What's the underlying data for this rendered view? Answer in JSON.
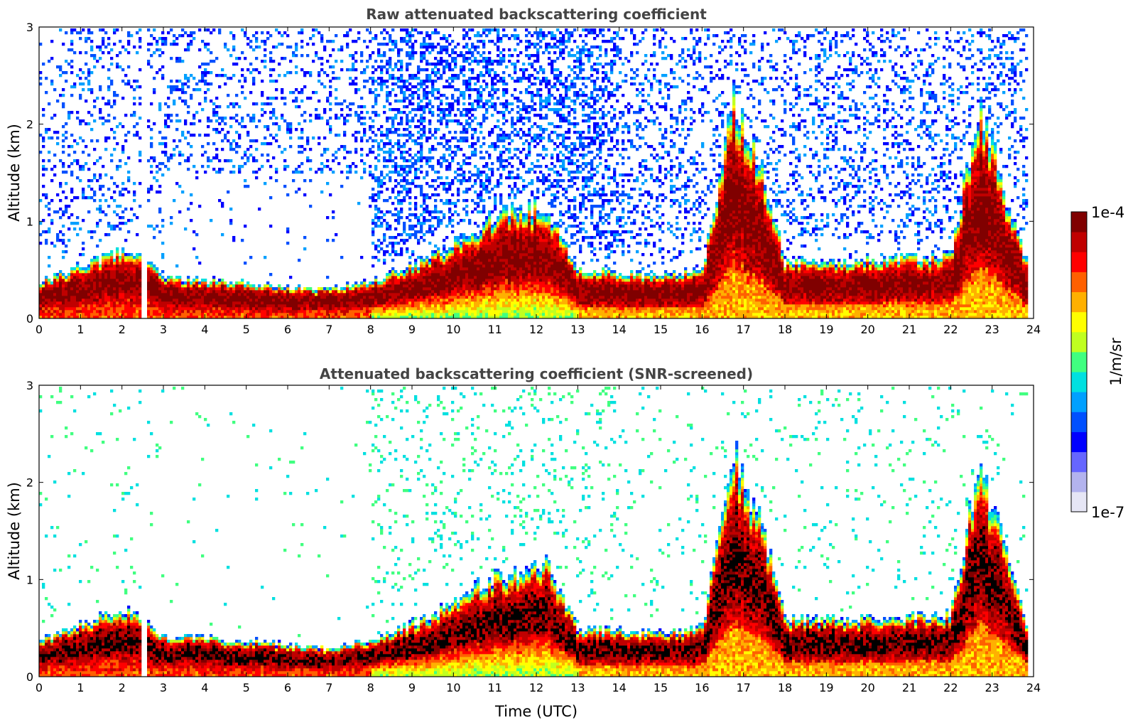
{
  "chart_data": [
    {
      "type": "heatmap",
      "title": "Raw attenuated backscattering coefficient",
      "xlabel": "",
      "ylabel": "Altitude (km)",
      "xlim": [
        0,
        24
      ],
      "ylim": [
        0,
        3
      ],
      "xticks": [
        0,
        1,
        2,
        3,
        4,
        5,
        6,
        7,
        8,
        9,
        10,
        11,
        12,
        13,
        14,
        15,
        16,
        17,
        18,
        19,
        20,
        21,
        22,
        23,
        24
      ],
      "yticks": [
        0,
        1,
        2,
        3
      ],
      "screening": "raw",
      "description_values": {
        "boundary_layer_top_km": [
          [
            0,
            0.38
          ],
          [
            2,
            0.7
          ],
          [
            2.5,
            0.62
          ],
          [
            3,
            0.42
          ],
          [
            5,
            0.37
          ],
          [
            7,
            0.3
          ],
          [
            8,
            0.38
          ],
          [
            9,
            0.55
          ],
          [
            10,
            0.75
          ],
          [
            10.8,
            1.0
          ],
          [
            11.5,
            1.1
          ],
          [
            12.2,
            1.2
          ],
          [
            13,
            0.5
          ],
          [
            15,
            0.45
          ],
          [
            16,
            0.5
          ],
          [
            16.8,
            2.3
          ],
          [
            17.5,
            1.5
          ],
          [
            18,
            0.6
          ],
          [
            20,
            0.6
          ],
          [
            22,
            0.65
          ],
          [
            22.7,
            2.2
          ],
          [
            23.8,
            0.6
          ]
        ]
      }
    },
    {
      "type": "heatmap",
      "title": "Attenuated backscattering coefficient (SNR-screened)",
      "xlabel": "Time (UTC)",
      "ylabel": "Altitude (km)",
      "xlim": [
        0,
        24
      ],
      "ylim": [
        0,
        3
      ],
      "xticks": [
        0,
        1,
        2,
        3,
        4,
        5,
        6,
        7,
        8,
        9,
        10,
        11,
        12,
        13,
        14,
        15,
        16,
        17,
        18,
        19,
        20,
        21,
        22,
        23,
        24
      ],
      "yticks": [
        0,
        1,
        2,
        3
      ],
      "screening": "snr",
      "description_values": {
        "boundary_layer_top_km": [
          [
            0,
            0.38
          ],
          [
            2,
            0.7
          ],
          [
            2.5,
            0.62
          ],
          [
            3,
            0.42
          ],
          [
            5,
            0.37
          ],
          [
            7,
            0.3
          ],
          [
            8,
            0.38
          ],
          [
            9,
            0.55
          ],
          [
            10,
            0.75
          ],
          [
            10.8,
            1.0
          ],
          [
            11.5,
            1.1
          ],
          [
            12.2,
            1.2
          ],
          [
            13,
            0.5
          ],
          [
            15,
            0.45
          ],
          [
            16,
            0.5
          ],
          [
            16.8,
            2.3
          ],
          [
            17.5,
            1.5
          ],
          [
            18,
            0.6
          ],
          [
            20,
            0.6
          ],
          [
            22,
            0.65
          ],
          [
            22.7,
            2.2
          ],
          [
            23.8,
            0.6
          ]
        ]
      }
    }
  ],
  "colorbar": {
    "label": "1/m/sr",
    "max_label": "1e-4",
    "min_label": "1e-7",
    "scale": "log",
    "range": [
      1e-07,
      0.0001
    ],
    "colors": [
      "#e6e6f5",
      "#b3b3ee",
      "#6666ff",
      "#0000ff",
      "#0050ff",
      "#00a0ff",
      "#00e0e0",
      "#40ff80",
      "#c0ff20",
      "#ffff00",
      "#ffb000",
      "#ff6000",
      "#ff0000",
      "#c00000",
      "#800000"
    ]
  }
}
